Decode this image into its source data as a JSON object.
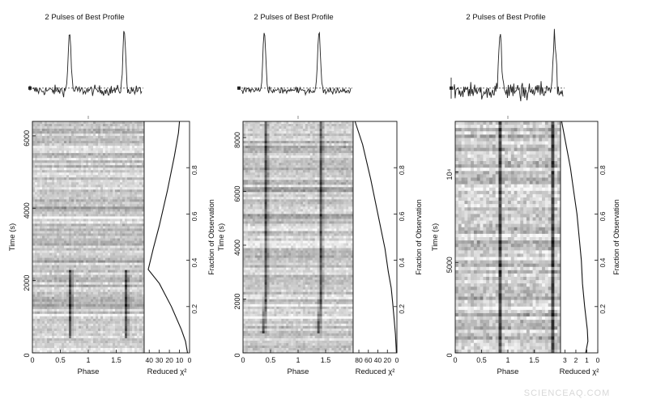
{
  "watermark": "SCIENCEAQ.COM",
  "chart_data": [
    {
      "type": "line",
      "profile_title": "2 Pulses of Best Profile",
      "xlabel": "Phase",
      "ylabel": "Time (s)",
      "chi_xlabel": "Reduced χ²",
      "right_ylabel": "Fraction of Observation",
      "phase_ticks": [
        "0",
        "0.5",
        "1",
        "1.5"
      ],
      "time_ticks": [
        {
          "v": 0,
          "t": "0"
        },
        {
          "v": 2000,
          "t": "2000"
        },
        {
          "v": 4000,
          "t": "4000"
        },
        {
          "v": 6000,
          "t": "6000"
        }
      ],
      "time_max": 6400,
      "chi_ticks": [
        {
          "v": 40,
          "t": "40"
        },
        {
          "v": 30,
          "t": "30"
        },
        {
          "v": 20,
          "t": "20"
        },
        {
          "v": 10,
          "t": "10"
        },
        {
          "v": 0,
          "t": "0"
        }
      ],
      "chi_max": 45,
      "frac_ticks": [
        "0.2",
        "0.4",
        "0.6",
        "0.8"
      ],
      "pulse_phases": [
        0.68,
        1.68
      ],
      "pulse_time_range": [
        400,
        2300
      ],
      "profile_noise": 0.18,
      "greyscale_noise": 0.35,
      "chi_curve": {
        "fraction": [
          0,
          0.05,
          0.1,
          0.2,
          0.3,
          0.36,
          0.45,
          0.55,
          0.7,
          0.85,
          0.95,
          1.0
        ],
        "chi": [
          2,
          4,
          8,
          18,
          30,
          41,
          36,
          30,
          22,
          15,
          11,
          10
        ]
      }
    },
    {
      "type": "line",
      "profile_title": "2 Pulses of Best Profile",
      "xlabel": "Phase",
      "ylabel": "Time (s)",
      "chi_xlabel": "Reduced χ²",
      "right_ylabel": "Fraction of Observation",
      "phase_ticks": [
        "0",
        "0.5",
        "1",
        "1.5"
      ],
      "time_ticks": [
        {
          "v": 0,
          "t": "0"
        },
        {
          "v": 2000,
          "t": "2000"
        },
        {
          "v": 4000,
          "t": "4000"
        },
        {
          "v": 6000,
          "t": "6000"
        },
        {
          "v": 8000,
          "t": "8000"
        }
      ],
      "time_max": 8600,
      "chi_ticks": [
        {
          "v": 80,
          "t": "80"
        },
        {
          "v": 60,
          "t": "60"
        },
        {
          "v": 40,
          "t": "40"
        },
        {
          "v": 20,
          "t": "20"
        },
        {
          "v": 0,
          "t": "0"
        }
      ],
      "chi_max": 92,
      "frac_ticks": [
        "0.2",
        "0.4",
        "0.6",
        "0.8"
      ],
      "pulse_phases": [
        0.42,
        1.42
      ],
      "pulse_time_range": [
        700,
        8600
      ],
      "profile_noise": 0.12,
      "greyscale_noise": 0.35,
      "chi_curve": {
        "fraction": [
          0,
          0.08,
          0.15,
          0.22,
          0.28,
          0.35,
          0.45,
          0.6,
          0.75,
          0.9,
          1.0
        ],
        "chi": [
          1,
          3,
          6,
          9,
          12,
          18,
          25,
          40,
          55,
          72,
          88
        ]
      }
    },
    {
      "type": "line",
      "profile_title": "2 Pulses of Best Profile",
      "xlabel": "Phase",
      "ylabel": "Time (s)",
      "chi_xlabel": "Reduced χ²",
      "right_ylabel": "Fraction of Observation",
      "phase_ticks": [
        "0",
        "0.5",
        "1",
        "1.5"
      ],
      "time_ticks": [
        {
          "v": 0,
          "t": "0"
        },
        {
          "v": 5000,
          "t": "5000"
        },
        {
          "v": 10000,
          "t": "10⁴"
        }
      ],
      "time_max": 12800,
      "chi_ticks": [
        {
          "v": 3,
          "t": "3"
        },
        {
          "v": 2,
          "t": "2"
        },
        {
          "v": 1,
          "t": "1"
        },
        {
          "v": 0,
          "t": "0"
        }
      ],
      "chi_max": 3.4,
      "frac_ticks": [
        "0.2",
        "0.4",
        "0.6",
        "0.8"
      ],
      "pulse_phases": [
        0.85,
        1.85
      ],
      "pulse_time_range": [
        0,
        12800
      ],
      "profile_noise": 0.35,
      "greyscale_noise": 0.55,
      "chi_curve": {
        "fraction": [
          0,
          0.05,
          0.1,
          0.2,
          0.3,
          0.4,
          0.5,
          0.6,
          0.7,
          0.8,
          0.9,
          1.0
        ],
        "chi": [
          1.1,
          0.9,
          0.95,
          1.2,
          1.4,
          1.5,
          1.7,
          1.9,
          2.2,
          2.5,
          2.9,
          3.3
        ]
      }
    }
  ]
}
